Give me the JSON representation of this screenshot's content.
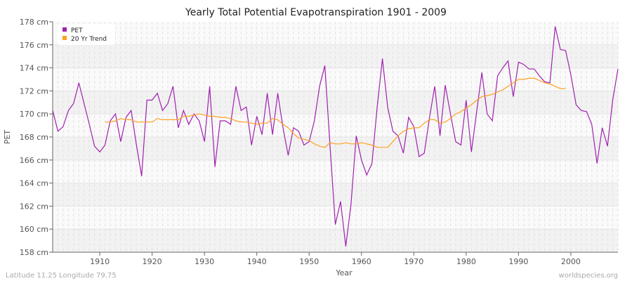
{
  "chart_data": {
    "type": "line",
    "title": "Yearly Total Potential Evapotranspiration 1901 - 2009",
    "xlabel": "Year",
    "ylabel": "PET",
    "xlim": [
      1901,
      2009
    ],
    "ylim": [
      158,
      178
    ],
    "x_ticks": [
      1910,
      1920,
      1930,
      1940,
      1950,
      1960,
      1970,
      1980,
      1990,
      2000
    ],
    "y_ticks": [
      158,
      160,
      162,
      164,
      166,
      168,
      170,
      172,
      174,
      176,
      178
    ],
    "y_tick_labels": [
      "158 cm",
      "160 cm",
      "162 cm",
      "164 cm",
      "166 cm",
      "168 cm",
      "170 cm",
      "172 cm",
      "174 cm",
      "176 cm",
      "178 cm"
    ],
    "grid": true,
    "legend_placement": "top-left",
    "series": [
      {
        "name": "PET",
        "color": "#a020b0",
        "x_start": 1901,
        "values": [
          170.3,
          168.5,
          168.9,
          170.3,
          170.9,
          172.7,
          170.9,
          169.1,
          167.2,
          166.7,
          167.3,
          169.4,
          170.0,
          167.6,
          169.7,
          170.3,
          167.3,
          164.6,
          171.2,
          171.2,
          171.8,
          170.3,
          170.9,
          172.4,
          168.8,
          170.3,
          169.1,
          170.0,
          169.4,
          167.6,
          172.4,
          165.4,
          169.4,
          169.4,
          169.1,
          172.4,
          170.3,
          170.6,
          167.3,
          169.8,
          168.2,
          171.8,
          168.2,
          171.8,
          168.8,
          166.4,
          168.8,
          168.5,
          167.3,
          167.6,
          169.4,
          172.4,
          174.2,
          167.2,
          160.4,
          162.4,
          158.5,
          162.2,
          168.1,
          166.0,
          164.7,
          165.7,
          170.6,
          174.8,
          170.6,
          168.5,
          168.1,
          166.6,
          169.7,
          168.9,
          166.3,
          166.6,
          169.7,
          172.4,
          168.1,
          172.5,
          170.0,
          167.6,
          167.3,
          171.2,
          166.7,
          170.2,
          173.6,
          170.0,
          169.4,
          173.3,
          174.0,
          174.6,
          171.5,
          174.5,
          174.3,
          173.9,
          173.9,
          173.3,
          172.8,
          172.7,
          177.6,
          175.6,
          175.5,
          173.4,
          170.8,
          170.3,
          170.2,
          169.1,
          165.7,
          168.8,
          167.2,
          171.2,
          173.9
        ]
      },
      {
        "name": "20 Yr Trend",
        "color": "#ffa020",
        "x_start": 1911,
        "values": [
          169.3,
          169.3,
          169.4,
          169.6,
          169.5,
          169.5,
          169.3,
          169.3,
          169.3,
          169.3,
          169.6,
          169.5,
          169.5,
          169.5,
          169.5,
          169.8,
          169.8,
          169.9,
          170.0,
          169.9,
          169.8,
          169.8,
          169.7,
          169.7,
          169.6,
          169.4,
          169.3,
          169.3,
          169.2,
          169.1,
          169.2,
          169.2,
          169.6,
          169.5,
          169.1,
          168.8,
          168.3,
          167.9,
          167.8,
          167.7,
          167.4,
          167.2,
          167.1,
          167.5,
          167.4,
          167.4,
          167.5,
          167.4,
          167.4,
          167.5,
          167.4,
          167.3,
          167.1,
          167.1,
          167.1,
          167.6,
          168.1,
          168.5,
          168.7,
          168.8,
          168.8,
          169.2,
          169.5,
          169.5,
          169.2,
          169.3,
          169.6,
          170.0,
          170.2,
          170.5,
          170.8,
          171.2,
          171.5,
          171.6,
          171.7,
          171.9,
          172.1,
          172.4,
          172.7,
          173.0,
          173.0,
          173.1,
          173.1,
          172.9,
          172.7,
          172.6,
          172.4,
          172.2,
          172.2
        ]
      }
    ]
  },
  "footer": {
    "location": "Latitude 11.25 Longitude 79.75",
    "source": "worldspecies.org"
  }
}
